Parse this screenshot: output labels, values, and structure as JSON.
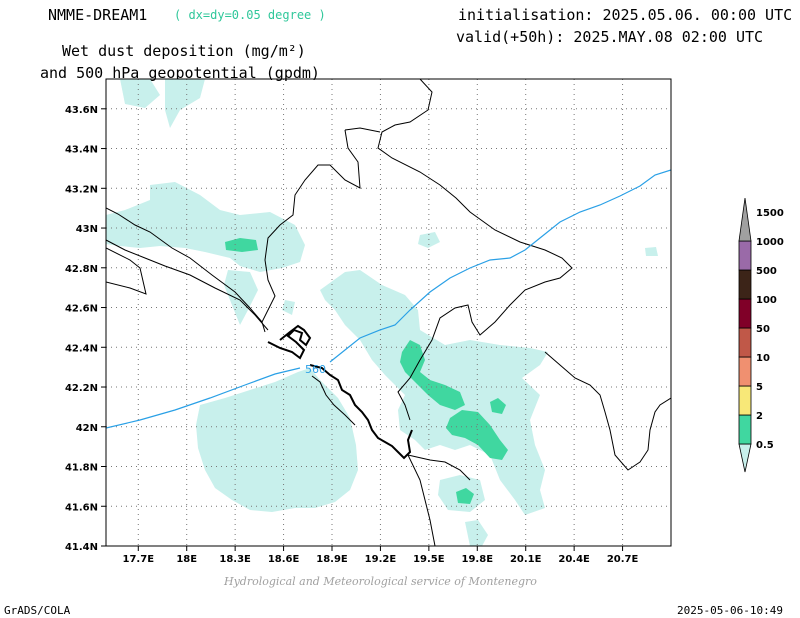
{
  "header": {
    "model_name": "NMME-DREAM1",
    "resolution": "( dx=dy=0.05 degree )",
    "title_line1": "Wet dust deposition (mg/m²)",
    "title_line2": "and 500 hPa geopotential (gpdm)",
    "init_time": "initialisation: 2025.05.06. 00:00 UTC",
    "valid_time": "valid(+50h): 2025.MAY.08 02:00 UTC"
  },
  "footer": {
    "credit": "Hydrological and Meteorological service of Montenegro",
    "software": "GrADS/COLA",
    "timestamp": "2025-05-06-10:49"
  },
  "map": {
    "lon_range": [
      17.5,
      21.0
    ],
    "lat_range": [
      41.4,
      43.75
    ],
    "lon_ticks": [
      17.7,
      18.0,
      18.3,
      18.6,
      18.9,
      19.2,
      19.5,
      19.8,
      20.1,
      20.4,
      20.7
    ],
    "lon_tick_labels": [
      "17.7E",
      "18E",
      "18.3E",
      "18.6E",
      "18.9E",
      "19.2E",
      "19.5E",
      "19.8E",
      "20.1E",
      "20.4E",
      "20.7E"
    ],
    "lat_ticks": [
      41.4,
      41.6,
      41.8,
      42.0,
      42.2,
      42.4,
      42.6,
      42.8,
      43.0,
      43.2,
      43.4,
      43.6
    ],
    "lat_tick_labels": [
      "41.4N",
      "41.6N",
      "41.8N",
      "42N",
      "42.2N",
      "42.4N",
      "42.6N",
      "42.8N",
      "43N",
      "43.2N",
      "43.4N",
      "43.6N"
    ],
    "grid": true,
    "contour_label": "560",
    "contour_color": "#2aa0e6"
  },
  "colorbar": {
    "labels": [
      "0.5",
      "2",
      "5",
      "10",
      "50",
      "100",
      "500",
      "1000",
      "1500"
    ],
    "colors": [
      "#c8f0ec",
      "#40d7a0",
      "#f8e878",
      "#f09070",
      "#c05848",
      "#800028",
      "#3c2418",
      "#9a6aa8",
      "#a0a0a0"
    ]
  }
}
